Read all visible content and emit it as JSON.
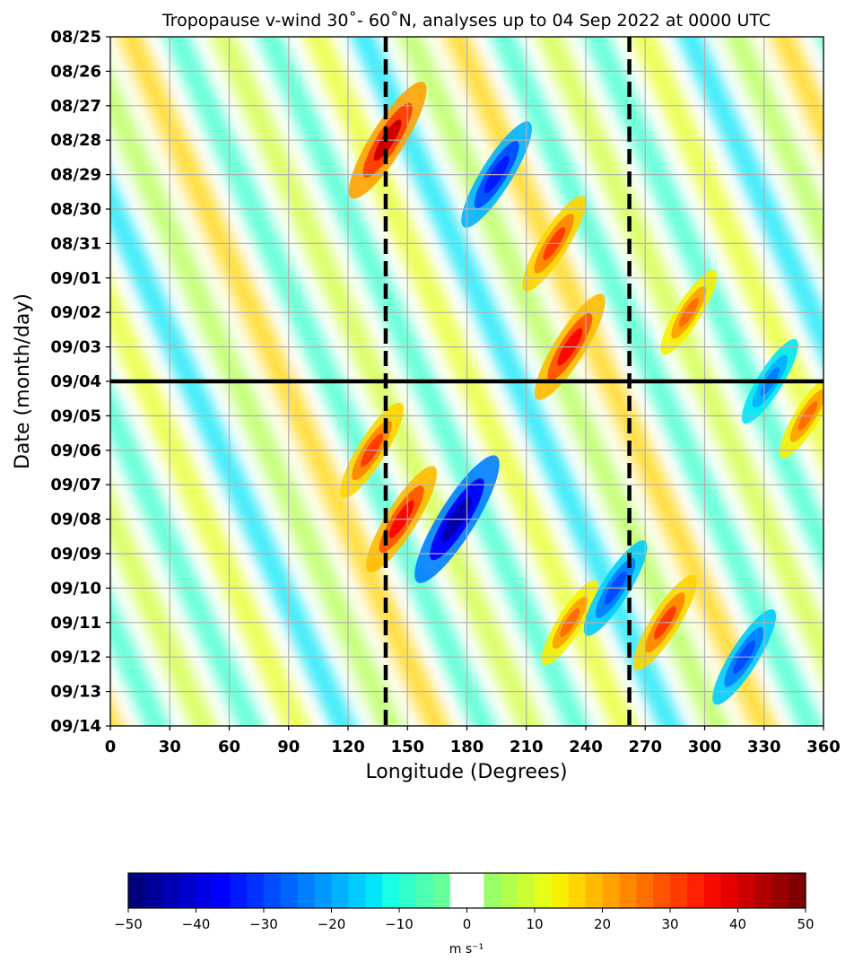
{
  "chart_data": {
    "type": "heatmap",
    "title": "Tropopause v-wind 30˚- 60˚N, analyses up to 04 Sep 2022 at 0000 UTC",
    "xlabel": "Longitude (Degrees)",
    "ylabel": "Date (month/day)",
    "x_ticks": [
      0,
      30,
      60,
      90,
      120,
      150,
      180,
      210,
      240,
      270,
      300,
      330,
      360
    ],
    "xlim": [
      0,
      360
    ],
    "y_ticks": [
      "08/25",
      "08/26",
      "08/27",
      "08/28",
      "08/29",
      "08/30",
      "08/31",
      "09/01",
      "09/02",
      "09/03",
      "09/04",
      "09/05",
      "09/06",
      "09/07",
      "09/08",
      "09/09",
      "09/10",
      "09/11",
      "09/12",
      "09/13",
      "09/14"
    ],
    "grid": true,
    "analysis_line_date": "09/04",
    "reference_longitudes": [
      139,
      262
    ],
    "colorbar": {
      "label": "m s⁻¹",
      "min": -50,
      "max": 50,
      "ticks": [
        -50,
        -40,
        -30,
        -20,
        -10,
        0,
        10,
        20,
        30,
        40,
        50
      ],
      "tick_labels": [
        "−50",
        "−40",
        "−30",
        "−20",
        "−10",
        "0",
        "10",
        "20",
        "30",
        "40",
        "50"
      ],
      "colors": [
        "#00007f",
        "#000099",
        "#0000b2",
        "#0000cc",
        "#0000e5",
        "#0000ff",
        "#0019ff",
        "#0033ff",
        "#004cff",
        "#0066ff",
        "#007fff",
        "#0099ff",
        "#00b2ff",
        "#00ccff",
        "#00e5f7",
        "#19ffe6",
        "#33ffcc",
        "#4cffb2",
        "#66ff99",
        "#ffffff",
        "#ffffff",
        "#99ff66",
        "#b2ff4c",
        "#ccff33",
        "#e5ff19",
        "#f7f000",
        "#ffd400",
        "#ffbb00",
        "#ffa200",
        "#ff8800",
        "#ff6f00",
        "#ff5500",
        "#ff3c00",
        "#ff2200",
        "#f70900",
        "#e50000",
        "#cc0000",
        "#b20000",
        "#990000",
        "#7f0000"
      ]
    },
    "features": [
      {
        "lon": 140,
        "date": "08/28",
        "value": 40
      },
      {
        "lon": 195,
        "date": "08/29",
        "value": -35
      },
      {
        "lon": 224,
        "date": "08/31",
        "value": 30
      },
      {
        "lon": 232,
        "date": "09/03",
        "value": 35
      },
      {
        "lon": 175,
        "date": "09/08",
        "value": -45
      },
      {
        "lon": 147,
        "date": "09/08",
        "value": 35
      },
      {
        "lon": 132,
        "date": "09/06",
        "value": 30
      },
      {
        "lon": 280,
        "date": "09/11",
        "value": 30
      },
      {
        "lon": 232,
        "date": "09/11",
        "value": 25
      },
      {
        "lon": 255,
        "date": "09/10",
        "value": -30
      },
      {
        "lon": 320,
        "date": "09/12",
        "value": -30
      },
      {
        "lon": 352,
        "date": "09/05",
        "value": 25
      },
      {
        "lon": 292,
        "date": "09/02",
        "value": 25
      },
      {
        "lon": 333,
        "date": "09/04",
        "value": -25
      }
    ]
  }
}
